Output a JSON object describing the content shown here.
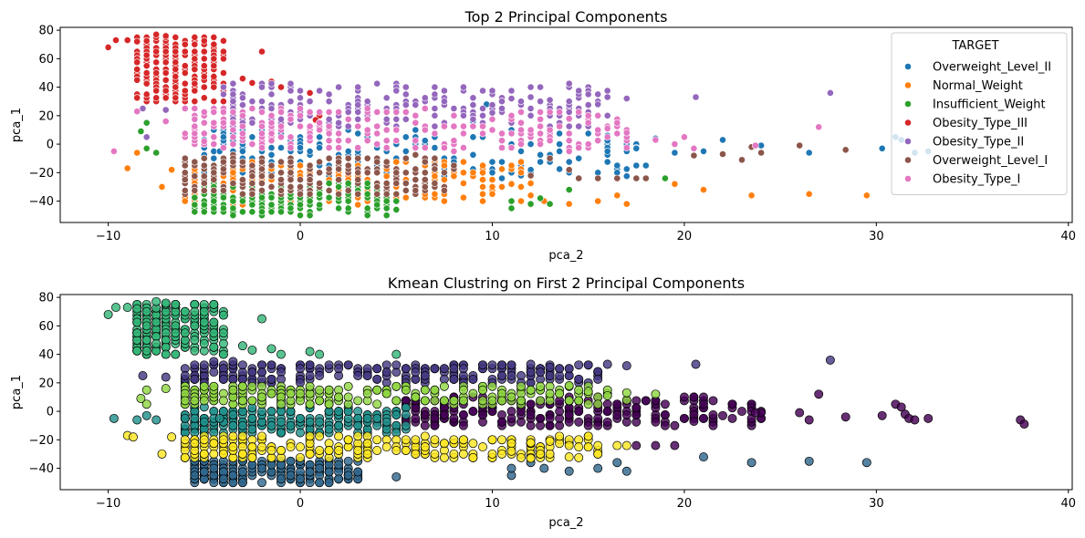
{
  "chart_data": [
    {
      "type": "scatter",
      "title": "Top 2 Principal Components",
      "xlabel": "pca_2",
      "ylabel": "pca_1",
      "xlim": [
        -12.5,
        40.2
      ],
      "ylim": [
        -55,
        82
      ],
      "xticks": [
        -10,
        0,
        10,
        20,
        30,
        40
      ],
      "yticks": [
        -40,
        -20,
        0,
        20,
        40,
        60,
        80
      ],
      "grid": false,
      "legend": {
        "title": "TARGET",
        "placement": "top-right"
      },
      "series": [
        {
          "name": "Overweight_Level_II",
          "color": "#1f77b4",
          "region": {
            "x": [
              -5,
              18
            ],
            "y": [
              -22,
              10
            ]
          },
          "points": [
            [
              24.0,
              -1
            ],
            [
              26.5,
              -6
            ],
            [
              30.3,
              -3
            ],
            [
              31.0,
              5
            ],
            [
              31.3,
              3
            ],
            [
              32.0,
              -6
            ],
            [
              32.7,
              -5
            ],
            [
              22.0,
              3
            ],
            [
              21.0,
              -5
            ],
            [
              19.5,
              -6
            ],
            [
              9.7,
              28
            ],
            [
              9.0,
              16
            ],
            [
              10.5,
              -24
            ],
            [
              11.5,
              -22
            ],
            [
              12.0,
              -18
            ],
            [
              16.0,
              6
            ],
            [
              17.5,
              -3
            ],
            [
              18.5,
              4
            ],
            [
              -4.2,
              -5
            ],
            [
              -5.0,
              3
            ]
          ]
        },
        {
          "name": "Normal_Weight",
          "color": "#ff7f0e",
          "region": {
            "x": [
              -6,
              12
            ],
            "y": [
              -42,
              -12
            ]
          },
          "points": [
            [
              -9.0,
              -17
            ],
            [
              -8.5,
              -6
            ],
            [
              -7.2,
              -30
            ],
            [
              -6.7,
              -18
            ],
            [
              29.5,
              -36
            ],
            [
              26.5,
              -35
            ],
            [
              23.5,
              -36
            ],
            [
              21.0,
              -32
            ],
            [
              19.5,
              -28
            ],
            [
              17.0,
              -42
            ],
            [
              16.5,
              -36
            ],
            [
              15.5,
              -40
            ],
            [
              14.0,
              -42
            ],
            [
              12.7,
              -40
            ],
            [
              12.0,
              -36
            ],
            [
              11.0,
              -28
            ],
            [
              10.0,
              -30
            ]
          ]
        },
        {
          "name": "Insufficient_Weight",
          "color": "#2ca02c",
          "region": {
            "x": [
              -5.5,
              5
            ],
            "y": [
              -50,
              -28
            ]
          },
          "points": [
            [
              -8.0,
              15
            ],
            [
              -8.3,
              9
            ],
            [
              -8.0,
              -3
            ],
            [
              -7.5,
              -6
            ],
            [
              11.0,
              -40
            ],
            [
              11.0,
              -45
            ],
            [
              12.0,
              -42
            ],
            [
              12.5,
              -38
            ],
            [
              13.0,
              -42
            ],
            [
              14.0,
              -32
            ],
            [
              19.0,
              -24
            ],
            [
              5.0,
              -46
            ]
          ]
        },
        {
          "name": "Obesity_Type_III",
          "color": "#d62728",
          "region": {
            "x": [
              -8.5,
              -4
            ],
            "y": [
              30,
              76
            ]
          },
          "points": [
            [
              -10.0,
              68
            ],
            [
              -9.6,
              73
            ],
            [
              -9.0,
              73
            ],
            [
              -8.5,
              72
            ],
            [
              -7.5,
              77
            ],
            [
              -7.0,
              76
            ],
            [
              -6.5,
              75
            ],
            [
              -6.0,
              70
            ],
            [
              -5.5,
              60
            ],
            [
              -2.0,
              65
            ],
            [
              -3.0,
              46
            ],
            [
              -2.5,
              43
            ],
            [
              -1.5,
              44
            ],
            [
              -1.0,
              40
            ],
            [
              0.5,
              36
            ],
            [
              1.0,
              20
            ],
            [
              0.8,
              17
            ]
          ]
        },
        {
          "name": "Obesity_Type_II",
          "color": "#9467bd",
          "region": {
            "x": [
              -4,
              16
            ],
            "y": [
              12,
              43
            ]
          },
          "points": [
            [
              -8.2,
              25
            ],
            [
              -8.0,
              5
            ],
            [
              -7.0,
              24
            ],
            [
              20.6,
              33
            ],
            [
              27.6,
              36
            ],
            [
              17.0,
              32
            ],
            [
              16.0,
              33
            ],
            [
              15.5,
              28
            ],
            [
              14.0,
              30
            ],
            [
              13.0,
              31
            ],
            [
              12.0,
              33
            ],
            [
              11.0,
              32
            ],
            [
              10.0,
              22
            ]
          ]
        },
        {
          "name": "Overweight_Level_I",
          "color": "#8c564b",
          "region": {
            "x": [
              -6,
              8
            ],
            "y": [
              -36,
              -8
            ]
          },
          "points": [
            [
              26.0,
              -1
            ],
            [
              28.4,
              -4
            ],
            [
              24.0,
              -6
            ],
            [
              23.5,
              -2
            ],
            [
              23.0,
              -11
            ],
            [
              22.0,
              -7
            ],
            [
              20.5,
              -8
            ],
            [
              18.0,
              -24
            ],
            [
              17.5,
              -24
            ],
            [
              16.5,
              -24
            ],
            [
              15.5,
              -24
            ],
            [
              14.5,
              -24
            ],
            [
              14.0,
              -18
            ],
            [
              12.0,
              -22
            ],
            [
              13.0,
              -10
            ]
          ]
        },
        {
          "name": "Obesity_Type_I",
          "color": "#e377c2",
          "region": {
            "x": [
              -6,
              17
            ],
            "y": [
              -4,
              25
            ]
          },
          "points": [
            [
              -9.7,
              -5
            ],
            [
              -8.5,
              23
            ],
            [
              -7.0,
              16
            ],
            [
              -5.0,
              2
            ],
            [
              20.5,
              -3
            ],
            [
              20.0,
              5
            ],
            [
              19.5,
              0
            ],
            [
              18.5,
              3
            ],
            [
              17.0,
              8
            ],
            [
              16.0,
              11
            ],
            [
              15.0,
              20
            ],
            [
              14.0,
              18
            ],
            [
              13.0,
              10
            ],
            [
              27.0,
              12
            ],
            [
              23.7,
              -1
            ]
          ]
        }
      ]
    },
    {
      "type": "scatter",
      "title": "Kmean Clustring on First 2 Principal Components",
      "xlabel": "pca_2",
      "ylabel": "pca_1",
      "xlim": [
        -12.5,
        40.2
      ],
      "ylim": [
        -55,
        82
      ],
      "xticks": [
        -10,
        0,
        10,
        20,
        30,
        40
      ],
      "yticks": [
        -40,
        -20,
        0,
        20,
        40,
        60,
        80
      ],
      "grid": false,
      "legend": null,
      "series": [
        {
          "color": "#440154",
          "region": {
            "x": [
              5.5,
              24
            ],
            "y": [
              -10,
              10
            ]
          },
          "points": [
            [
              24.0,
              -1
            ],
            [
              26.5,
              -6
            ],
            [
              28.4,
              -4
            ],
            [
              30.3,
              -3
            ],
            [
              31.0,
              5
            ],
            [
              31.3,
              3
            ],
            [
              31.5,
              -2
            ],
            [
              31.7,
              -5
            ],
            [
              32.0,
              -6
            ],
            [
              32.7,
              -5
            ],
            [
              37.5,
              -6
            ],
            [
              37.7,
              -9
            ],
            [
              27.0,
              12
            ],
            [
              23.7,
              -1
            ],
            [
              26.0,
              -1
            ],
            [
              22.0,
              -3
            ],
            [
              21.0,
              -5
            ],
            [
              20.5,
              -7
            ],
            [
              19.5,
              -24
            ],
            [
              18.5,
              -24
            ],
            [
              17.5,
              -24
            ]
          ]
        },
        {
          "color": "#443983",
          "region": {
            "x": [
              -6,
              16
            ],
            "y": [
              20,
              34
            ]
          },
          "points": [
            [
              20.6,
              33
            ],
            [
              27.6,
              36
            ],
            [
              17.0,
              32
            ],
            [
              16.0,
              33
            ],
            [
              15.5,
              28
            ],
            [
              14.0,
              30
            ],
            [
              13.0,
              31
            ],
            [
              12.0,
              33
            ],
            [
              -8.2,
              25
            ],
            [
              -7.0,
              24
            ]
          ]
        },
        {
          "color": "#31688e",
          "region": {
            "x": [
              -5.5,
              3
            ],
            "y": [
              -50,
              -34
            ]
          },
          "points": [
            [
              29.5,
              -36
            ],
            [
              26.5,
              -35
            ],
            [
              23.5,
              -36
            ],
            [
              21.0,
              -32
            ],
            [
              17.0,
              -42
            ],
            [
              16.5,
              -36
            ],
            [
              15.5,
              -40
            ],
            [
              14.0,
              -42
            ],
            [
              12.7,
              -40
            ],
            [
              12.0,
              -36
            ],
            [
              11.0,
              -45
            ],
            [
              11.0,
              -40
            ],
            [
              5.0,
              -46
            ]
          ]
        },
        {
          "color": "#21918c",
          "region": {
            "x": [
              -6,
              5.5
            ],
            "y": [
              -16,
              2
            ]
          },
          "points": [
            [
              -9.7,
              -5
            ],
            [
              -8.5,
              -6
            ],
            [
              -8.0,
              -3
            ],
            [
              -7.5,
              -6
            ],
            [
              -5.0,
              3
            ],
            [
              -4.2,
              -5
            ]
          ]
        },
        {
          "color": "#35b779",
          "region": {
            "x": [
              -8.5,
              -4
            ],
            "y": [
              40,
              76
            ]
          },
          "points": [
            [
              -10.0,
              68
            ],
            [
              -9.6,
              73
            ],
            [
              -9.0,
              73
            ],
            [
              -8.5,
              72
            ],
            [
              -7.5,
              77
            ],
            [
              -7.0,
              76
            ],
            [
              -6.5,
              75
            ],
            [
              -6.0,
              70
            ],
            [
              -5.5,
              60
            ],
            [
              -2.0,
              65
            ],
            [
              -3.0,
              46
            ],
            [
              -2.5,
              43
            ],
            [
              -1.5,
              44
            ],
            [
              -1.0,
              40
            ],
            [
              0.5,
              42
            ],
            [
              1.0,
              40
            ],
            [
              5.0,
              40
            ]
          ]
        },
        {
          "color": "#90d743",
          "region": {
            "x": [
              -6,
              16
            ],
            "y": [
              5,
              18
            ]
          },
          "points": [
            [
              -8.0,
              15
            ],
            [
              -8.3,
              9
            ],
            [
              -8.0,
              5
            ],
            [
              -7.0,
              16
            ],
            [
              14.0,
              18
            ],
            [
              15.0,
              14
            ],
            [
              16.0,
              11
            ],
            [
              17.0,
              8
            ],
            [
              18.5,
              12
            ],
            [
              17.0,
              13
            ]
          ]
        },
        {
          "color": "#fde725",
          "region": {
            "x": [
              -6,
              16
            ],
            "y": [
              -33,
              -18
            ]
          },
          "points": [
            [
              -9.0,
              -17
            ],
            [
              -8.7,
              -18
            ],
            [
              -7.2,
              -30
            ],
            [
              -6.7,
              -18
            ],
            [
              12.0,
              -22
            ],
            [
              13.0,
              -21
            ],
            [
              14.0,
              -24
            ],
            [
              15.5,
              -24
            ],
            [
              16.5,
              -24
            ],
            [
              17.0,
              -24
            ],
            [
              10.0,
              -30
            ],
            [
              11.0,
              -28
            ],
            [
              12.0,
              -33
            ],
            [
              14.0,
              -32
            ]
          ]
        }
      ]
    }
  ]
}
